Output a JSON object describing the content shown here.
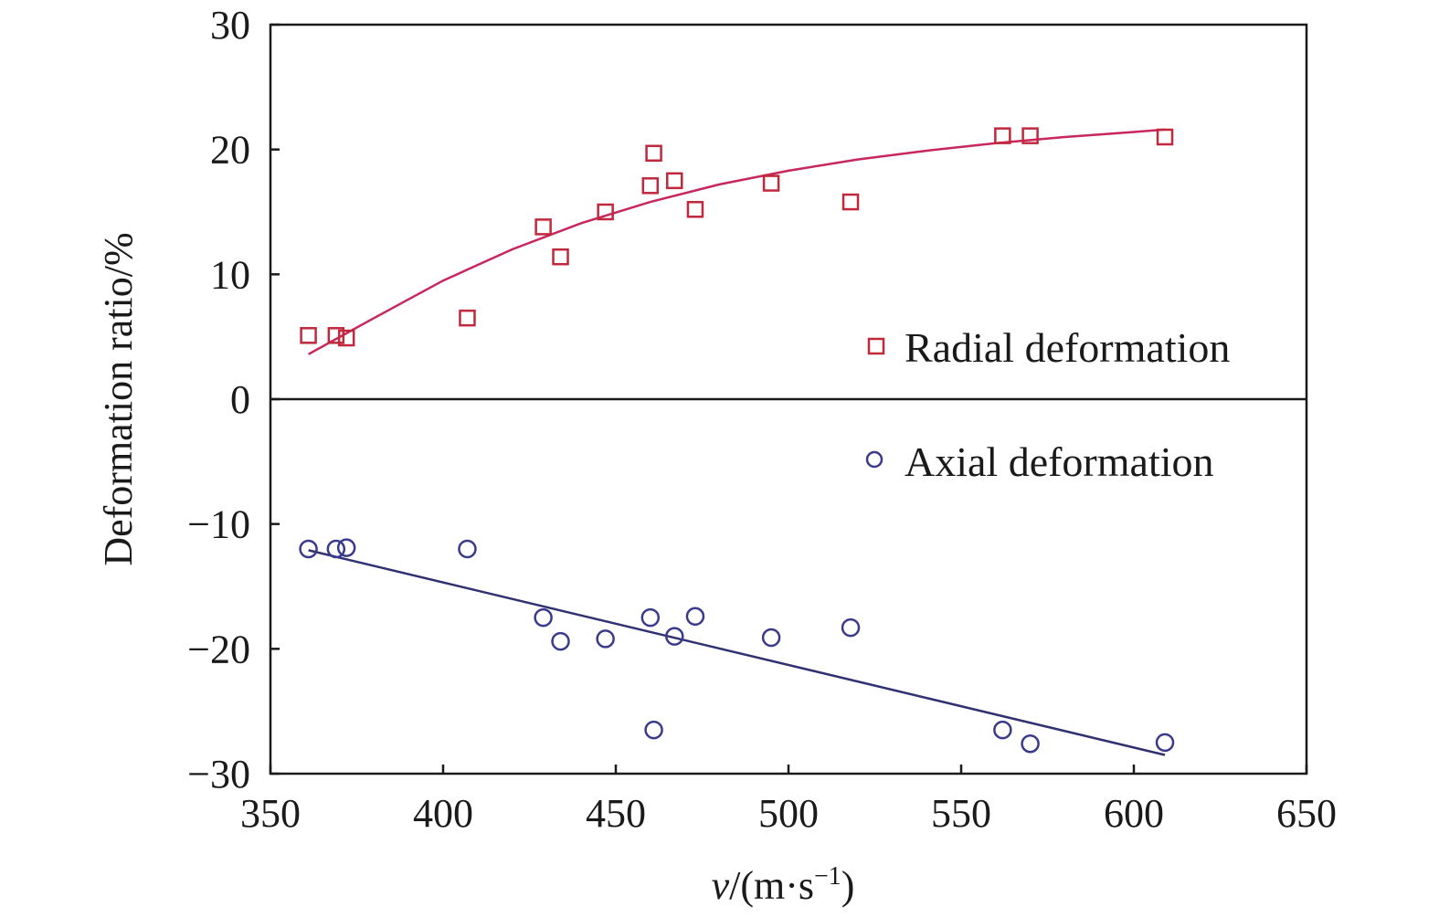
{
  "chart_data": {
    "type": "scatter",
    "title": "",
    "xlabel": {
      "var": "v",
      "unit_prefix": "/(m·s",
      "exp": "−1",
      "suffix": ")"
    },
    "ylabel": "Deformation ratio/%",
    "xlim": [
      350,
      650
    ],
    "ylim": [
      -30,
      30
    ],
    "xticks": [
      "350",
      "400",
      "450",
      "500",
      "550",
      "600",
      "650"
    ],
    "yticks": [
      "−30",
      "−20",
      "−10",
      "0",
      "10",
      "20",
      "30"
    ],
    "zero_line": true,
    "grid": false,
    "legend_position": "right",
    "series": [
      {
        "name": "Radial deformation",
        "marker": "square",
        "color": "#c0283c",
        "points": [
          [
            361,
            5.1
          ],
          [
            369,
            5.1
          ],
          [
            372,
            4.9
          ],
          [
            407,
            6.5
          ],
          [
            429,
            13.8
          ],
          [
            434,
            11.4
          ],
          [
            447,
            15.0
          ],
          [
            460,
            17.1
          ],
          [
            461,
            19.7
          ],
          [
            467,
            17.5
          ],
          [
            473,
            15.2
          ],
          [
            495,
            17.3
          ],
          [
            518,
            15.8
          ],
          [
            562,
            21.1
          ],
          [
            570,
            21.1
          ],
          [
            609,
            21.0
          ]
        ],
        "fit": {
          "color": "#c8275c",
          "points": [
            [
              361,
              3.6
            ],
            [
              380,
              6.5
            ],
            [
              400,
              9.5
            ],
            [
              420,
              12.0
            ],
            [
              440,
              14.1
            ],
            [
              460,
              15.8
            ],
            [
              480,
              17.2
            ],
            [
              500,
              18.3
            ],
            [
              520,
              19.2
            ],
            [
              540,
              19.9
            ],
            [
              560,
              20.5
            ],
            [
              580,
              21.0
            ],
            [
              600,
              21.4
            ],
            [
              609,
              21.6
            ]
          ]
        }
      },
      {
        "name": "Axial deformation",
        "marker": "circle",
        "color": "#3a3a8c",
        "points": [
          [
            361,
            -12.0
          ],
          [
            369,
            -12.0
          ],
          [
            372,
            -11.9
          ],
          [
            407,
            -12.0
          ],
          [
            429,
            -17.5
          ],
          [
            434,
            -19.4
          ],
          [
            447,
            -19.2
          ],
          [
            460,
            -17.5
          ],
          [
            461,
            -26.5
          ],
          [
            467,
            -19.0
          ],
          [
            473,
            -17.4
          ],
          [
            495,
            -19.1
          ],
          [
            518,
            -18.3
          ],
          [
            562,
            -26.5
          ],
          [
            570,
            -27.6
          ],
          [
            609,
            -27.5
          ]
        ],
        "fit": {
          "color": "#2f3170",
          "points": [
            [
              361,
              -12.1
            ],
            [
              609,
              -28.5
            ]
          ]
        }
      }
    ]
  }
}
